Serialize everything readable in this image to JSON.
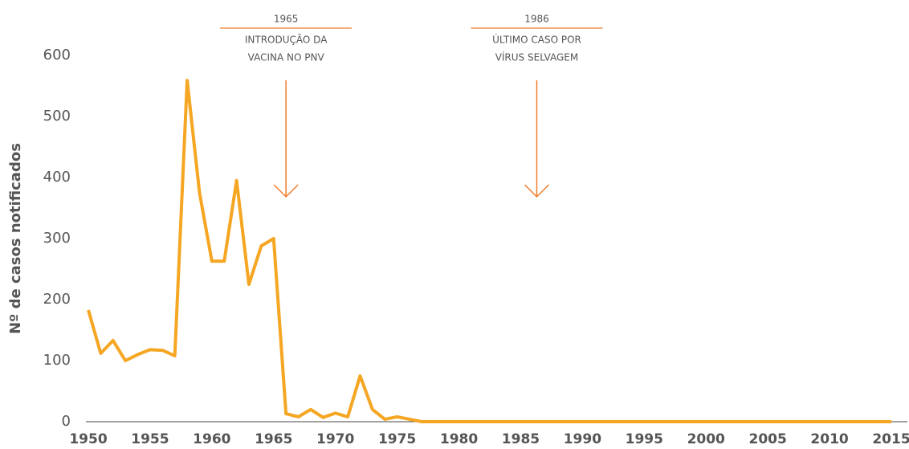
{
  "chart_data": {
    "type": "line",
    "y_label": "Nº de casos notificados",
    "x": [
      1950,
      1951,
      1952,
      1953,
      1954,
      1955,
      1956,
      1957,
      1958,
      1959,
      1960,
      1961,
      1962,
      1963,
      1964,
      1965,
      1966,
      1967,
      1968,
      1969,
      1970,
      1971,
      1972,
      1973,
      1974,
      1975,
      1976,
      1977,
      1978,
      1979,
      1980,
      1981,
      1982,
      1983,
      1984,
      1985,
      1986,
      1987,
      1988,
      1989,
      1990,
      1991,
      1992,
      1993,
      1994,
      1995,
      1996,
      1997,
      1998,
      1999,
      2000,
      2001,
      2002,
      2003,
      2004,
      2005,
      2006,
      2007,
      2008,
      2009,
      2010,
      2011,
      2012,
      2013,
      2014,
      2015
    ],
    "series": [
      {
        "color": "#f5a623",
        "values": [
          183,
          112,
          133,
          100,
          110,
          118,
          117,
          108,
          559,
          375,
          263,
          263,
          395,
          225,
          288,
          300,
          13,
          8,
          20,
          7,
          14,
          8,
          75,
          20,
          4,
          8,
          4,
          0,
          0,
          0,
          0,
          0,
          0,
          0,
          0,
          0,
          0,
          0,
          0,
          0,
          0,
          0,
          0,
          0,
          0,
          0,
          0,
          0,
          0,
          0,
          0,
          0,
          0,
          0,
          0,
          0,
          0,
          0,
          0,
          0,
          0,
          0,
          0,
          0,
          0,
          0
        ]
      }
    ],
    "xlim": [
      1950,
      2015
    ],
    "ylim": [
      0,
      600
    ],
    "xticks": [
      1950,
      1955,
      1960,
      1965,
      1970,
      1975,
      1980,
      1985,
      1990,
      1995,
      2000,
      2005,
      2010,
      2015
    ],
    "yticks": [
      0,
      100,
      200,
      300,
      400,
      500,
      600
    ],
    "annotations": [
      {
        "x": 1966,
        "year": "1965",
        "lines": [
          "INTRODUÇÃO DA",
          "VACINA NO PNV"
        ]
      },
      {
        "x": 1986.3,
        "year": "1986",
        "lines": [
          "ÚLTIMO CASO POR",
          "VÍRUS SELVAGEM"
        ]
      }
    ],
    "annotation_color": "#f07c2a"
  }
}
